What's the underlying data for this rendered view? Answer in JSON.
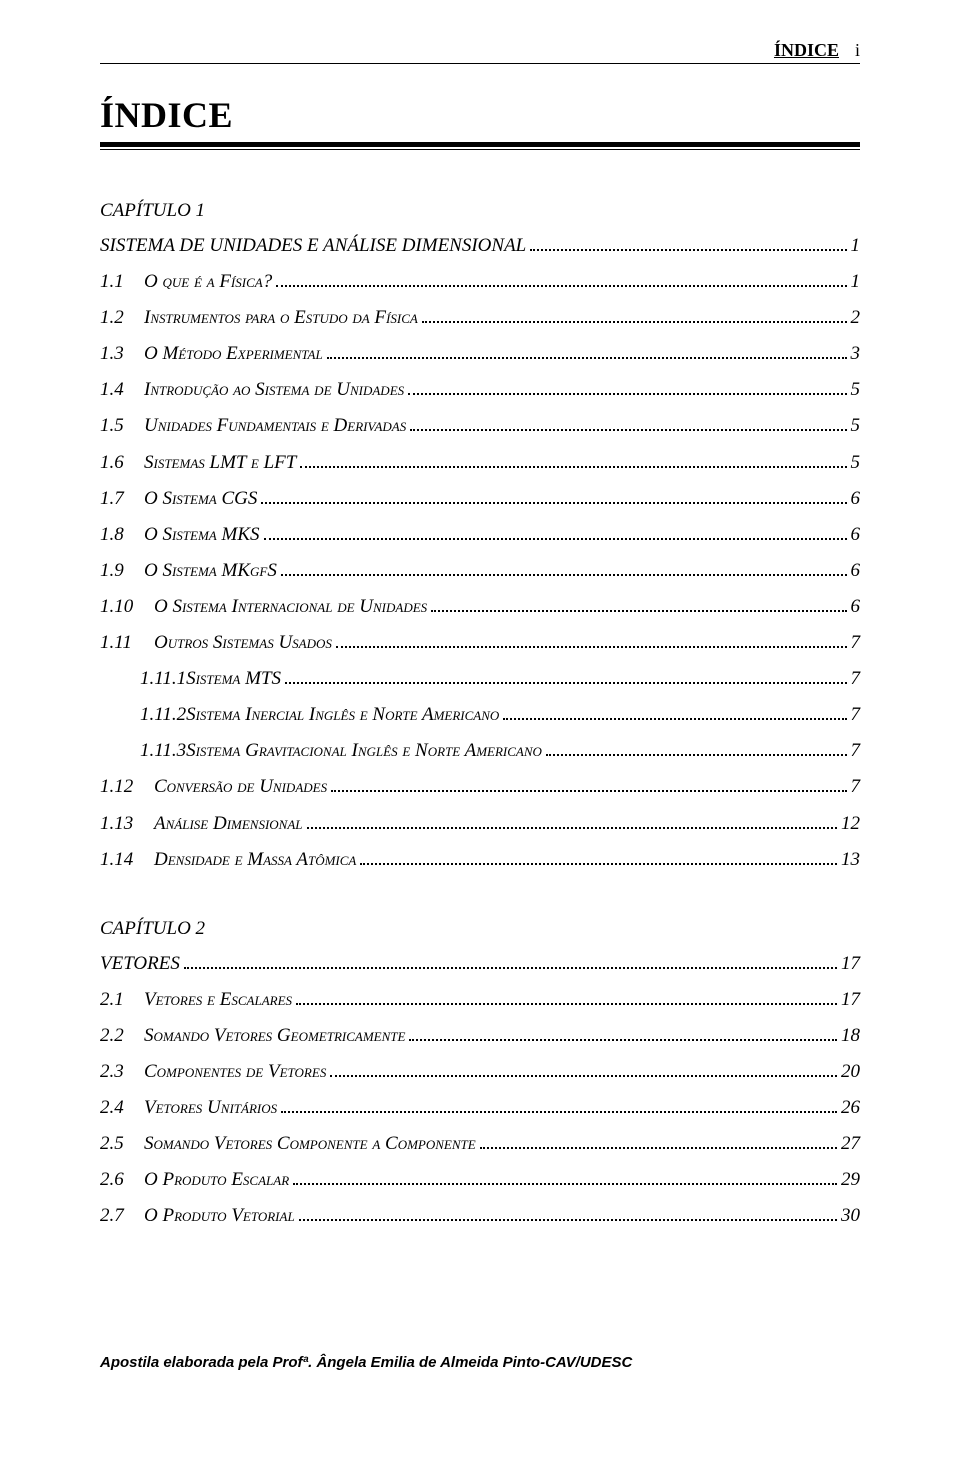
{
  "header": {
    "label": "ÍNDICE",
    "page": "i"
  },
  "title": "ÍNDICE",
  "chapters": [
    {
      "label": "CAPÍTULO 1",
      "heading": {
        "text": "SISTEMA DE UNIDADES E ANÁLISE DIMENSIONAL",
        "page": "1"
      },
      "entries": [
        {
          "num": "1.1",
          "text": "O que é a Física?",
          "page": "1",
          "indent": 1
        },
        {
          "num": "1.2",
          "text": "Instrumentos para o Estudo da Física",
          "page": "2",
          "indent": 1
        },
        {
          "num": "1.3",
          "text": "O Método Experimental",
          "page": "3",
          "indent": 1
        },
        {
          "num": "1.4",
          "text": "Introdução ao Sistema de Unidades",
          "page": "5",
          "indent": 1
        },
        {
          "num": "1.5",
          "text": "Unidades Fundamentais e Derivadas",
          "page": "5",
          "indent": 1
        },
        {
          "num": "1.6",
          "text": "Sistemas LMT e LFT",
          "page": "5",
          "indent": 1
        },
        {
          "num": "1.7",
          "text": "O Sistema CGS",
          "page": "6",
          "indent": 1
        },
        {
          "num": "1.8",
          "text": "O Sistema MKS",
          "page": "6",
          "indent": 1
        },
        {
          "num": "1.9",
          "text": "O Sistema MKgfS",
          "page": "6",
          "indent": 1
        },
        {
          "num": "1.10",
          "text": "O Sistema Internacional de Unidades",
          "page": "6",
          "indent": 1,
          "wide": true
        },
        {
          "num": "1.11",
          "text": "Outros Sistemas Usados",
          "page": "7",
          "indent": 1,
          "wide": true
        },
        {
          "num": "1.11.1",
          "text": "Sistema MTS",
          "page": "7",
          "indent": 2
        },
        {
          "num": "1.11.2",
          "text": "Sistema Inercial Inglês e Norte Americano",
          "page": "7",
          "indent": 2
        },
        {
          "num": "1.11.3",
          "text": "Sistema Gravitacional Inglês e Norte Americano",
          "page": "7",
          "indent": 2
        },
        {
          "num": "1.12",
          "text": "Conversão de Unidades",
          "page": "7",
          "indent": 1,
          "wide": true
        },
        {
          "num": "1.13",
          "text": "Análise Dimensional",
          "page": "12",
          "indent": 1,
          "wide": true
        },
        {
          "num": "1.14",
          "text": "Densidade e Massa Atômica",
          "page": "13",
          "indent": 1,
          "wide": true
        }
      ]
    },
    {
      "label": "CAPÍTULO 2",
      "heading": {
        "text": "VETORES",
        "page": "17"
      },
      "entries": [
        {
          "num": "2.1",
          "text": "Vetores e Escalares",
          "page": "17",
          "indent": 1
        },
        {
          "num": "2.2",
          "text": "Somando Vetores Geometricamente",
          "page": "18",
          "indent": 1
        },
        {
          "num": "2.3",
          "text": "Componentes de Vetores",
          "page": "20",
          "indent": 1
        },
        {
          "num": "2.4",
          "text": "Vetores Unitários",
          "page": "26",
          "indent": 1
        },
        {
          "num": "2.5",
          "text": "Somando Vetores Componente a Componente",
          "page": "27",
          "indent": 1
        },
        {
          "num": "2.6",
          "text": "O Produto Escalar",
          "page": "29",
          "indent": 1
        },
        {
          "num": "2.7",
          "text": "O Produto Vetorial",
          "page": "30",
          "indent": 1
        }
      ]
    }
  ],
  "footer": "Apostila elaborada pela Profª. Ângela Emilia de Almeida Pinto-CAV/UDESC"
}
